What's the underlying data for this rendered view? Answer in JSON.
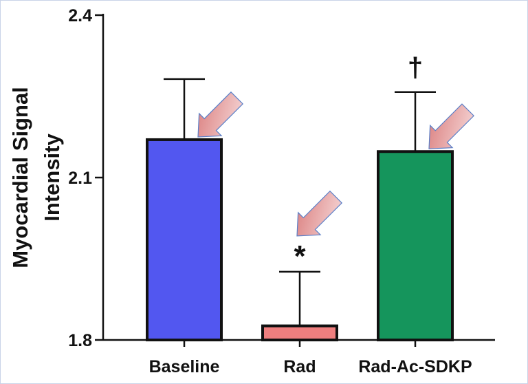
{
  "chart_data": {
    "type": "bar",
    "title": "",
    "xlabel": "",
    "ylabel_lines": [
      "Myocardial Signal",
      "Intensity"
    ],
    "categories": [
      "Baseline",
      "Rad",
      "Rad-Ac-SDKP"
    ],
    "values": [
      2.17,
      1.826,
      2.148
    ],
    "errors": [
      0.112,
      0.1,
      0.11
    ],
    "colors": [
      "#5257f0",
      "#ef7f7f",
      "#15955c"
    ],
    "ylim": [
      1.8,
      2.4
    ],
    "yticks": [
      1.8,
      2.1,
      2.4
    ],
    "ytick_labels": [
      "1.8",
      "2.1",
      "2.4"
    ],
    "annotations": [
      {
        "category": "Rad",
        "text": "*"
      },
      {
        "category": "Rad-Ac-SDKP",
        "text": "†"
      }
    ],
    "arrow_targets": [
      "Baseline",
      "Rad",
      "Rad-Ac-SDKP"
    ],
    "grid": false
  },
  "colors": {
    "axis": "#111111",
    "arrow_fill": "#e8a0a0",
    "arrow_stroke": "#5a7fc8"
  }
}
